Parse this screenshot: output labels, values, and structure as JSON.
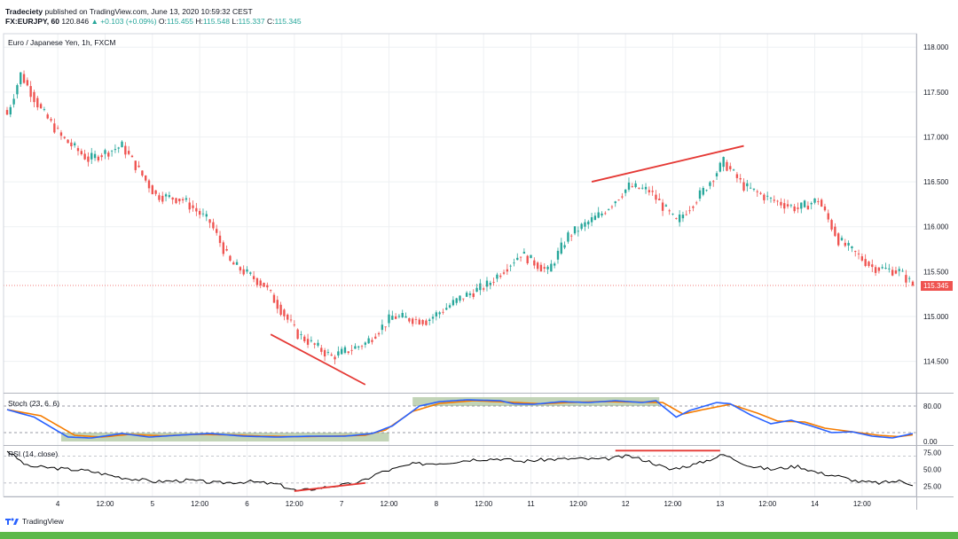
{
  "header": {
    "publisher": "Tradeciety",
    "published_text": "published on TradingView.com, June 13, 2020 10:59:32 CEST",
    "symbol": "FX:EURJPY, 60",
    "last": "120.846",
    "change": "+0.103 (+0.09%)",
    "o_label": "O:",
    "o_val": "115.455",
    "h_label": "H:",
    "h_val": "115.548",
    "l_label": "L:",
    "l_val": "115.337",
    "c_label": "C:",
    "c_val": "115.345"
  },
  "colors": {
    "up": "#26a69a",
    "down": "#ef5350",
    "stoch_k": "#2962ff",
    "stoch_d": "#f57c00",
    "rsi": "#000000",
    "trend": "#e53935",
    "zone": "#b7ccaa"
  },
  "chart_data": [
    {
      "type": "candlestick",
      "title": "Euro / Japanese Yen, 1h, FXCM",
      "ylim": [
        114.15,
        118.15
      ],
      "y_ticks": [
        "118.000",
        "117.500",
        "117.000",
        "116.500",
        "116.000",
        "115.500",
        "115.000",
        "114.500"
      ],
      "last_price": "115.345",
      "anchors": [
        {
          "bar": 0,
          "price": 117.25
        },
        {
          "bar": 4,
          "price": 117.7
        },
        {
          "bar": 10,
          "price": 117.3
        },
        {
          "bar": 16,
          "price": 117.0
        },
        {
          "bar": 24,
          "price": 116.75
        },
        {
          "bar": 34,
          "price": 116.9
        },
        {
          "bar": 44,
          "price": 116.35
        },
        {
          "bar": 52,
          "price": 116.3
        },
        {
          "bar": 60,
          "price": 116.05
        },
        {
          "bar": 66,
          "price": 115.6
        },
        {
          "bar": 76,
          "price": 115.35
        },
        {
          "bar": 86,
          "price": 114.8
        },
        {
          "bar": 96,
          "price": 114.55
        },
        {
          "bar": 106,
          "price": 114.7
        },
        {
          "bar": 114,
          "price": 115.0
        },
        {
          "bar": 124,
          "price": 114.95
        },
        {
          "bar": 134,
          "price": 115.2
        },
        {
          "bar": 142,
          "price": 115.35
        },
        {
          "bar": 152,
          "price": 115.7
        },
        {
          "bar": 160,
          "price": 115.5
        },
        {
          "bar": 166,
          "price": 115.9
        },
        {
          "bar": 176,
          "price": 116.15
        },
        {
          "bar": 184,
          "price": 116.45
        },
        {
          "bar": 190,
          "price": 116.4
        },
        {
          "bar": 198,
          "price": 116.05
        },
        {
          "bar": 206,
          "price": 116.4
        },
        {
          "bar": 212,
          "price": 116.72
        },
        {
          "bar": 218,
          "price": 116.45
        },
        {
          "bar": 226,
          "price": 116.3
        },
        {
          "bar": 234,
          "price": 116.2
        },
        {
          "bar": 240,
          "price": 116.3
        },
        {
          "bar": 246,
          "price": 115.85
        },
        {
          "bar": 256,
          "price": 115.55
        },
        {
          "bar": 264,
          "price": 115.5
        },
        {
          "bar": 268,
          "price": 115.35
        }
      ],
      "bar_count": 269,
      "trendlines": [
        {
          "p1": [
            78,
            114.8
          ],
          "p2": [
            106,
            114.24
          ]
        },
        {
          "p1": [
            173,
            116.5
          ],
          "p2": [
            218,
            116.9
          ]
        }
      ]
    },
    {
      "type": "line",
      "title": "Stoch (23, 6, 6)",
      "ylim": [
        0,
        100
      ],
      "levels": [
        80,
        20
      ],
      "y_ticks": [
        "80.00",
        "0.00"
      ],
      "zones": [
        {
          "from": 16,
          "to": 113,
          "low": 0,
          "high": 20
        },
        {
          "from": 120,
          "to": 193,
          "low": 80,
          "high": 100
        }
      ],
      "k_anchors": [
        [
          0,
          72
        ],
        [
          8,
          55
        ],
        [
          18,
          10
        ],
        [
          25,
          8
        ],
        [
          34,
          18
        ],
        [
          42,
          10
        ],
        [
          50,
          14
        ],
        [
          60,
          18
        ],
        [
          70,
          12
        ],
        [
          80,
          10
        ],
        [
          90,
          12
        ],
        [
          100,
          12
        ],
        [
          108,
          18
        ],
        [
          114,
          35
        ],
        [
          122,
          80
        ],
        [
          128,
          90
        ],
        [
          136,
          94
        ],
        [
          146,
          92
        ],
        [
          150,
          85
        ],
        [
          156,
          84
        ],
        [
          164,
          90
        ],
        [
          172,
          88
        ],
        [
          180,
          92
        ],
        [
          188,
          88
        ],
        [
          192,
          92
        ],
        [
          198,
          55
        ],
        [
          202,
          70
        ],
        [
          210,
          88
        ],
        [
          214,
          85
        ],
        [
          220,
          60
        ],
        [
          226,
          40
        ],
        [
          232,
          48
        ],
        [
          238,
          35
        ],
        [
          244,
          20
        ],
        [
          250,
          22
        ],
        [
          256,
          12
        ],
        [
          262,
          8
        ],
        [
          268,
          18
        ]
      ],
      "d_anchors": [
        [
          0,
          72
        ],
        [
          10,
          58
        ],
        [
          20,
          14
        ],
        [
          28,
          10
        ],
        [
          36,
          16
        ],
        [
          46,
          13
        ],
        [
          56,
          16
        ],
        [
          66,
          15
        ],
        [
          76,
          12
        ],
        [
          86,
          11
        ],
        [
          96,
          12
        ],
        [
          106,
          14
        ],
        [
          112,
          26
        ],
        [
          120,
          68
        ],
        [
          128,
          86
        ],
        [
          138,
          92
        ],
        [
          148,
          89
        ],
        [
          158,
          85
        ],
        [
          166,
          88
        ],
        [
          176,
          90
        ],
        [
          186,
          89
        ],
        [
          194,
          88
        ],
        [
          200,
          62
        ],
        [
          206,
          72
        ],
        [
          214,
          84
        ],
        [
          222,
          64
        ],
        [
          228,
          46
        ],
        [
          236,
          44
        ],
        [
          242,
          30
        ],
        [
          250,
          22
        ],
        [
          258,
          14
        ],
        [
          264,
          11
        ],
        [
          268,
          15
        ]
      ]
    },
    {
      "type": "line",
      "title": "RSI (14, close)",
      "ylim": [
        10,
        85
      ],
      "levels": [
        70,
        30
      ],
      "y_ticks": [
        "75.00",
        "50.00",
        "25.00"
      ],
      "anchors": [
        [
          0,
          78
        ],
        [
          6,
          55
        ],
        [
          14,
          52
        ],
        [
          24,
          48
        ],
        [
          34,
          38
        ],
        [
          44,
          32
        ],
        [
          54,
          34
        ],
        [
          62,
          30
        ],
        [
          72,
          32
        ],
        [
          80,
          28
        ],
        [
          86,
          18
        ],
        [
          96,
          25
        ],
        [
          104,
          30
        ],
        [
          110,
          45
        ],
        [
          120,
          58
        ],
        [
          130,
          60
        ],
        [
          138,
          65
        ],
        [
          146,
          66
        ],
        [
          152,
          62
        ],
        [
          160,
          65
        ],
        [
          168,
          66
        ],
        [
          176,
          65
        ],
        [
          184,
          70
        ],
        [
          190,
          62
        ],
        [
          196,
          50
        ],
        [
          204,
          58
        ],
        [
          212,
          72
        ],
        [
          220,
          55
        ],
        [
          226,
          50
        ],
        [
          234,
          55
        ],
        [
          240,
          45
        ],
        [
          246,
          40
        ],
        [
          252,
          32
        ],
        [
          258,
          30
        ],
        [
          264,
          33
        ],
        [
          268,
          28
        ]
      ],
      "trendlines": [
        {
          "p1": [
            85,
            18
          ],
          "p2": [
            106,
            30
          ]
        },
        {
          "p1": [
            180,
            78
          ],
          "p2": [
            211,
            78
          ]
        }
      ]
    }
  ],
  "x_ticks": [
    {
      "bar": 15,
      "label": "4"
    },
    {
      "bar": 29,
      "label": "12:00"
    },
    {
      "bar": 43,
      "label": "5"
    },
    {
      "bar": 57,
      "label": "12:00"
    },
    {
      "bar": 71,
      "label": "6"
    },
    {
      "bar": 85,
      "label": "12:00"
    },
    {
      "bar": 99,
      "label": "7"
    },
    {
      "bar": 113,
      "label": "12:00"
    },
    {
      "bar": 127,
      "label": "8"
    },
    {
      "bar": 141,
      "label": "12:00"
    },
    {
      "bar": 155,
      "label": "11"
    },
    {
      "bar": 169,
      "label": "12:00"
    },
    {
      "bar": 183,
      "label": "12"
    },
    {
      "bar": 197,
      "label": "12:00"
    },
    {
      "bar": 211,
      "label": "13"
    },
    {
      "bar": 225,
      "label": "12:00"
    },
    {
      "bar": 239,
      "label": "14"
    },
    {
      "bar": 253,
      "label": "12:00"
    }
  ],
  "footer": {
    "brand": "TradingView"
  }
}
